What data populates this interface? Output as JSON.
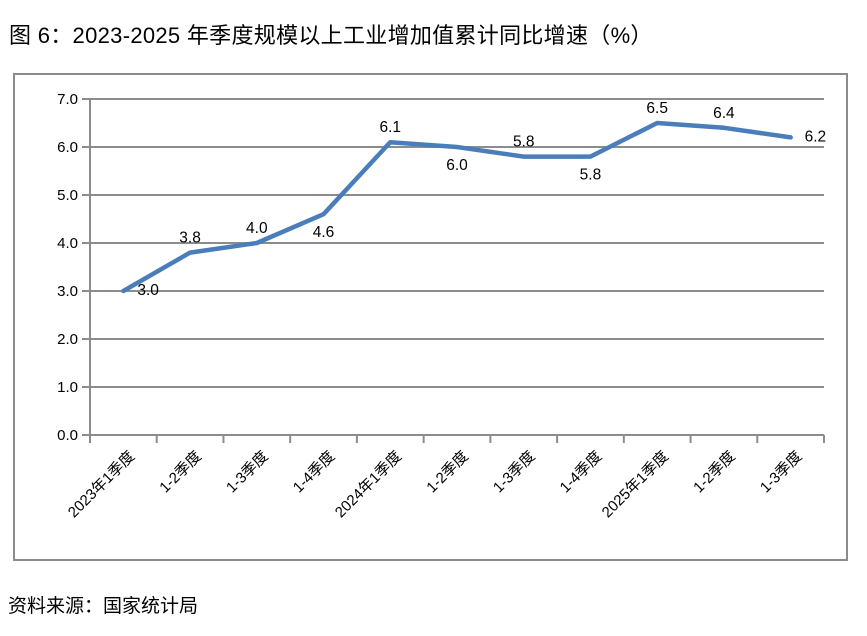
{
  "figure": {
    "title": "图 6：2023-2025 年季度规模以上工业增加值累计同比增速（%）",
    "source": "资料来源：国家统计局"
  },
  "chart_data": {
    "type": "line",
    "title": "图 6：2023-2025 年季度规模以上工业增加值累计同比增速（%）",
    "categories": [
      "2023年1季度",
      "1-2季度",
      "1-3季度",
      "1-4季度",
      "2024年1季度",
      "1-2季度",
      "1-3季度",
      "1-4季度",
      "2025年1季度",
      "1-2季度",
      "1-3季度"
    ],
    "values": [
      3.0,
      3.8,
      4.0,
      4.6,
      6.1,
      6.0,
      5.8,
      5.8,
      6.5,
      6.4,
      6.2
    ],
    "data_labels": [
      "3.0",
      "3.8",
      "4.0",
      "4.6",
      "6.1",
      "6.0",
      "5.8",
      "5.8",
      "6.5",
      "6.4",
      "6.2"
    ],
    "label_placements": [
      "right",
      "above",
      "above",
      "below",
      "above",
      "below",
      "above",
      "below",
      "above",
      "above",
      "right"
    ],
    "xlabel": "",
    "ylabel": "",
    "ylim": [
      0.0,
      7.0
    ],
    "ytick_labels": [
      "0.0",
      "1.0",
      "2.0",
      "3.0",
      "4.0",
      "5.0",
      "6.0",
      "7.0"
    ],
    "grid": "horizontal",
    "legend": "none",
    "colors": {
      "line": "#4A7EBB",
      "grid": "#8C8C8C",
      "frame": "#8C8C8C",
      "text": "#000000"
    }
  }
}
